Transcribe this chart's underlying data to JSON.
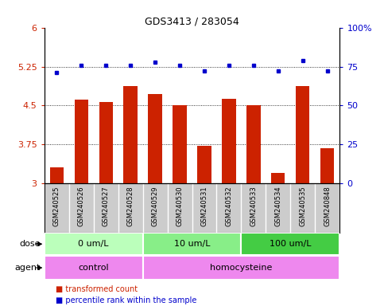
{
  "title": "GDS3413 / 283054",
  "samples": [
    "GSM240525",
    "GSM240526",
    "GSM240527",
    "GSM240528",
    "GSM240529",
    "GSM240530",
    "GSM240531",
    "GSM240532",
    "GSM240533",
    "GSM240534",
    "GSM240535",
    "GSM240848"
  ],
  "bar_values": [
    3.32,
    4.62,
    4.57,
    4.87,
    4.72,
    4.5,
    3.73,
    4.63,
    4.5,
    3.2,
    4.87,
    3.68
  ],
  "dot_values": [
    71,
    76,
    76,
    76,
    78,
    76,
    72,
    76,
    76,
    72,
    79,
    72
  ],
  "bar_color": "#cc2200",
  "dot_color": "#0000cc",
  "ylim_left": [
    3,
    6
  ],
  "ylim_right": [
    0,
    100
  ],
  "yticks_left": [
    3,
    3.75,
    4.5,
    5.25,
    6
  ],
  "yticks_right": [
    0,
    25,
    50,
    75,
    100
  ],
  "ytick_labels_right": [
    "0",
    "25",
    "50",
    "75",
    "100%"
  ],
  "hlines": [
    3.75,
    4.5,
    5.25
  ],
  "dose_groups": [
    {
      "label": "0 um/L",
      "start": 0,
      "end": 4,
      "color": "#bbffbb"
    },
    {
      "label": "10 um/L",
      "start": 4,
      "end": 8,
      "color": "#88ee88"
    },
    {
      "label": "100 um/L",
      "start": 8,
      "end": 12,
      "color": "#44cc44"
    }
  ],
  "agent_groups": [
    {
      "label": "control",
      "start": 0,
      "end": 4,
      "color": "#ee88ee"
    },
    {
      "label": "homocysteine",
      "start": 4,
      "end": 12,
      "color": "#ee88ee"
    }
  ],
  "dose_label": "dose",
  "agent_label": "agent",
  "legend_bar": "transformed count",
  "legend_dot": "percentile rank within the sample",
  "bar_width": 0.55,
  "background_color": "#ffffff",
  "sample_bg_color": "#cccccc",
  "title_fontsize": 9,
  "axis_fontsize": 8,
  "label_fontsize": 8,
  "sample_fontsize": 6
}
